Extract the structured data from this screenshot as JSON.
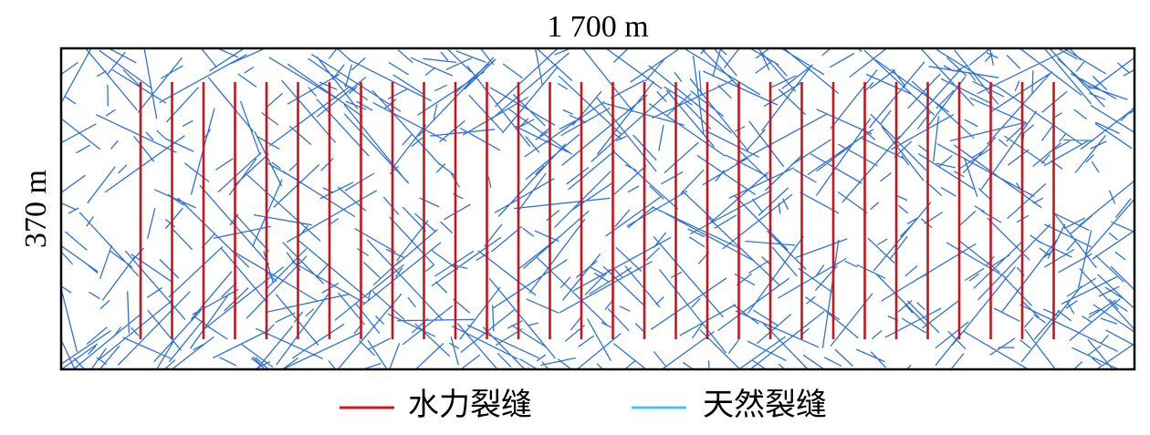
{
  "top_label": "1 700 m",
  "side_label": "370 m",
  "legend": {
    "items": [
      {
        "label": "水力裂缝"
      },
      {
        "label": "天然裂缝"
      }
    ]
  }
}
